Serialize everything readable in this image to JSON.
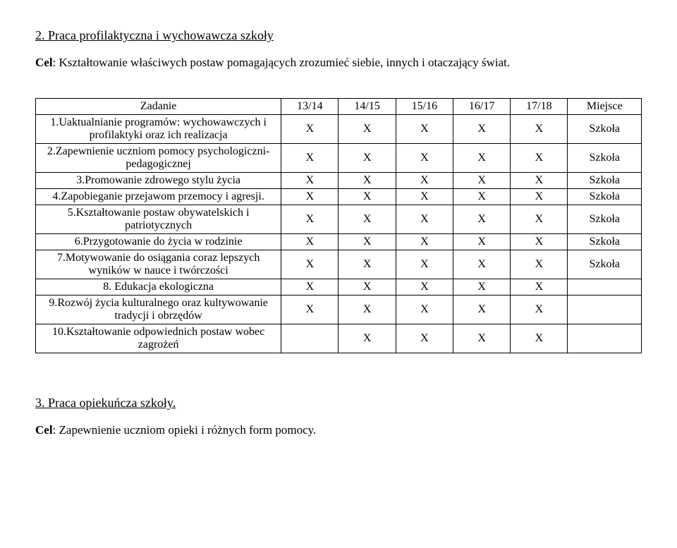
{
  "section2": {
    "heading": "2. Praca profilaktyczna i wychowawcza szkoły",
    "goal_label": "Cel",
    "goal_text": ": Kształtowanie właściwych postaw pomagających zrozumieć siebie, innych i otaczający świat."
  },
  "table": {
    "headers": [
      "Zadanie",
      "13/14",
      "14/15",
      "15/16",
      "16/17",
      "17/18",
      "Miejsce"
    ],
    "rows": [
      {
        "task": "1.Uaktualnianie programów: wychowawczych i profilaktyki oraz ich realizacja",
        "marks": [
          "X",
          "X",
          "X",
          "X",
          "X"
        ],
        "place": "Szkoła"
      },
      {
        "task": "2.Zapewnienie uczniom pomocy psychologiczni-pedagogicznej",
        "marks": [
          "X",
          "X",
          "X",
          "X",
          "X"
        ],
        "place": "Szkoła"
      },
      {
        "task": "3.Promowanie zdrowego stylu życia",
        "marks": [
          "X",
          "X",
          "X",
          "X",
          "X"
        ],
        "place": "Szkoła"
      },
      {
        "task": "4.Zapobieganie przejawom przemocy i agresji.",
        "marks": [
          "X",
          "X",
          "X",
          "X",
          "X"
        ],
        "place": "Szkoła"
      },
      {
        "task": "5.Kształtowanie postaw obywatelskich i patriotycznych",
        "marks": [
          "X",
          "X",
          "X",
          "X",
          "X"
        ],
        "place": "Szkoła"
      },
      {
        "task": "6.Przygotowanie do życia w rodzinie",
        "marks": [
          "X",
          "X",
          "X",
          "X",
          "X"
        ],
        "place": "Szkoła"
      },
      {
        "task": "7.Motywowanie do osiągania coraz lepszych wyników w nauce i twórczości",
        "marks": [
          "X",
          "X",
          "X",
          "X",
          "X"
        ],
        "place": "Szkoła"
      },
      {
        "task": "8. Edukacja ekologiczna",
        "marks": [
          "X",
          "X",
          "X",
          "X",
          "X"
        ],
        "place": ""
      },
      {
        "task": "9.Rozwój życia kulturalnego oraz kultywowanie tradycji i obrzędów",
        "marks": [
          "X",
          "X",
          "X",
          "X",
          "X"
        ],
        "place": ""
      },
      {
        "task": "10.Kształtowanie odpowiednich postaw wobec zagrożeń",
        "marks": [
          "",
          "X",
          "X",
          "X",
          "X"
        ],
        "place": ""
      }
    ]
  },
  "section3": {
    "heading": "3. Praca opiekuńcza szkoły.",
    "goal_label": "Cel",
    "goal_text": ": Zapewnienie uczniom opieki i różnych form pomocy."
  }
}
